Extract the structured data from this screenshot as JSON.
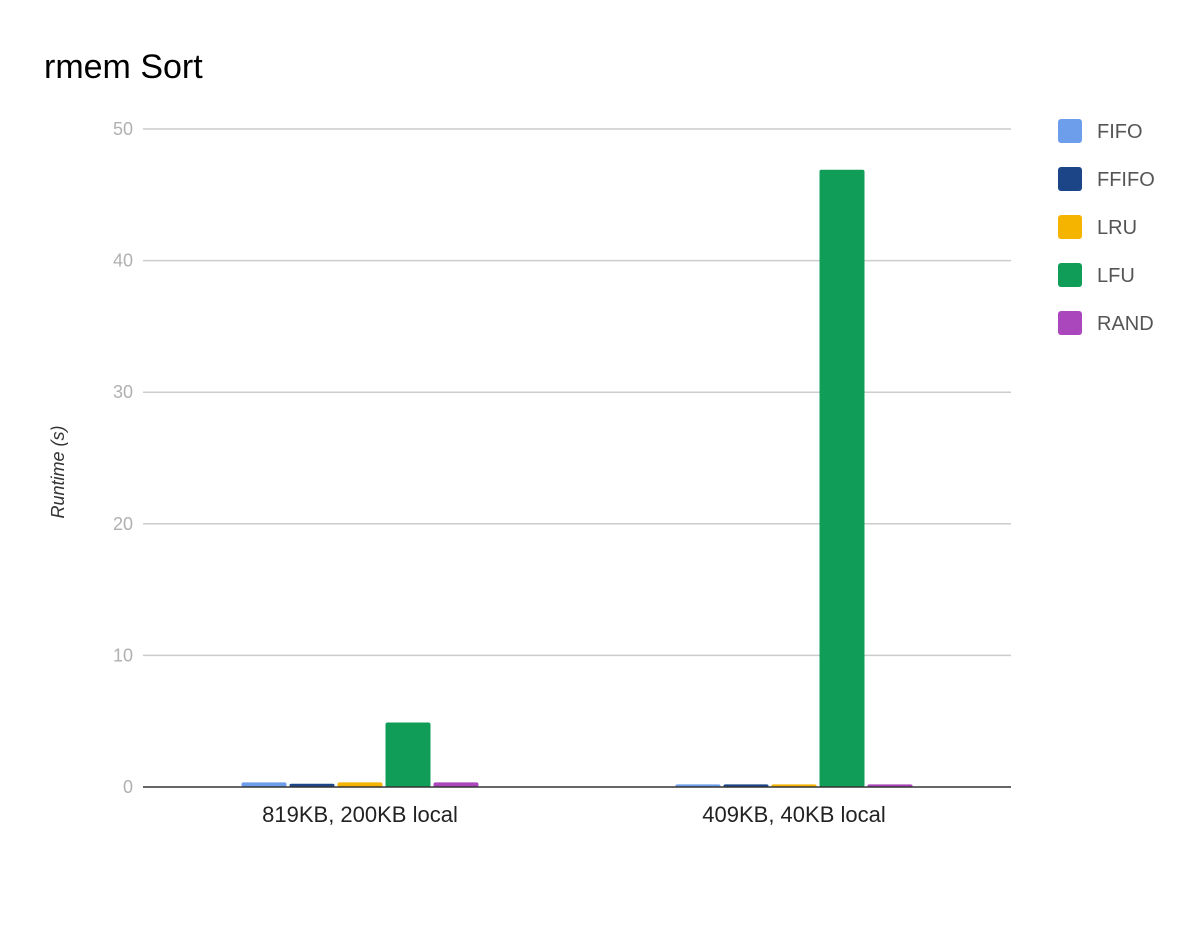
{
  "chart_data": {
    "type": "bar",
    "title": "rmem Sort",
    "xlabel": "",
    "ylabel": "Runtime (s)",
    "ylim": [
      0,
      50
    ],
    "yticks": [
      0,
      10,
      20,
      30,
      40,
      50
    ],
    "grid": true,
    "legend_position": "right",
    "categories": [
      "819KB, 200KB local",
      "409KB, 40KB local"
    ],
    "series": [
      {
        "name": "FIFO",
        "color": "#6d9eeb",
        "values": [
          0.35,
          0.2
        ]
      },
      {
        "name": "FFIFO",
        "color": "#1c4587",
        "values": [
          0.25,
          0.2
        ]
      },
      {
        "name": "LRU",
        "color": "#f4b400",
        "values": [
          0.35,
          0.2
        ]
      },
      {
        "name": "LFU",
        "color": "#0f9d58",
        "values": [
          4.9,
          46.9
        ]
      },
      {
        "name": "RAND",
        "color": "#ab47bc",
        "values": [
          0.35,
          0.2
        ]
      }
    ]
  }
}
